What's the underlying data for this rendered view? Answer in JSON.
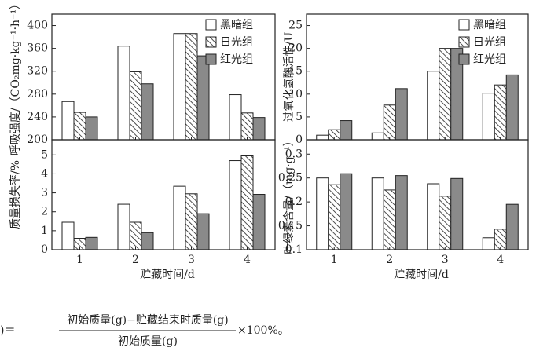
{
  "chart_data": [
    {
      "type": "bar",
      "y_label": "呼吸强度/（CO₂mg·kg⁻¹·h⁻¹）",
      "categories": [
        null,
        null,
        null,
        null
      ],
      "series": [
        {
          "name": "黑暗组",
          "color": "#ffffff",
          "hatch": false,
          "values": [
            267,
            364,
            386,
            279
          ]
        },
        {
          "name": "日光组",
          "color": "#ffffff",
          "hatch": true,
          "values": [
            248,
            319,
            386,
            247
          ]
        },
        {
          "name": "红光组",
          "color": "#8a8a8a",
          "hatch": false,
          "values": [
            240,
            298,
            347,
            239
          ]
        }
      ],
      "ylim": [
        200,
        420
      ],
      "yticks": [
        200,
        240,
        280,
        320,
        360,
        400
      ],
      "legend": "upper right"
    },
    {
      "type": "bar",
      "y_label": "过氧化氢酶活性/U",
      "categories": [
        null,
        null,
        null,
        null
      ],
      "series": [
        {
          "name": "黑暗组",
          "color": "#ffffff",
          "hatch": false,
          "values": [
            1,
            1.5,
            15,
            10.2
          ]
        },
        {
          "name": "日光组",
          "color": "#ffffff",
          "hatch": true,
          "values": [
            2.2,
            7.6,
            20,
            12
          ]
        },
        {
          "name": "红光组",
          "color": "#8a8a8a",
          "hatch": false,
          "values": [
            4.2,
            11.2,
            20,
            14.2
          ]
        }
      ],
      "ylim": [
        0,
        27.5
      ],
      "yticks": [
        0,
        5,
        10,
        15,
        20,
        25
      ],
      "legend": "upper right"
    },
    {
      "type": "bar",
      "y_label": "质量损失率/%",
      "x_label": "贮藏时间/d",
      "categories": [
        "1",
        "2",
        "3",
        "4"
      ],
      "series": [
        {
          "color": "#ffffff",
          "hatch": false,
          "values": [
            1.45,
            2.4,
            3.35,
            4.7
          ]
        },
        {
          "color": "#ffffff",
          "hatch": true,
          "values": [
            0.6,
            1.45,
            2.95,
            4.95
          ]
        },
        {
          "color": "#8a8a8a",
          "hatch": false,
          "values": [
            0.65,
            0.9,
            1.9,
            2.92
          ]
        }
      ],
      "ylim": [
        0,
        5.8
      ],
      "yticks": [
        0,
        1,
        2,
        3,
        4,
        5
      ]
    },
    {
      "type": "bar",
      "y_label": "叶绿素含量/（mg·g⁻¹）",
      "x_label": "贮藏时间/d",
      "categories": [
        "1",
        "2",
        "3",
        "4"
      ],
      "series": [
        {
          "color": "#ffffff",
          "hatch": false,
          "values": [
            0.25,
            0.25,
            0.238,
            0.125
          ]
        },
        {
          "color": "#ffffff",
          "hatch": true,
          "values": [
            0.236,
            0.225,
            0.212,
            0.143
          ]
        },
        {
          "color": "#8a8a8a",
          "hatch": false,
          "values": [
            0.259,
            0.255,
            0.249,
            0.195
          ]
        }
      ],
      "ylim": [
        0.1,
        0.33
      ],
      "yticks": [
        0.1,
        0.15,
        0.2,
        0.25,
        0.3
      ]
    }
  ],
  "footnote": {
    "prefix": ")＝",
    "numerator": "初始质量(g)−贮藏结束时质量(g)",
    "denominator": "初始质量(g)",
    "suffix": "×100%。"
  }
}
